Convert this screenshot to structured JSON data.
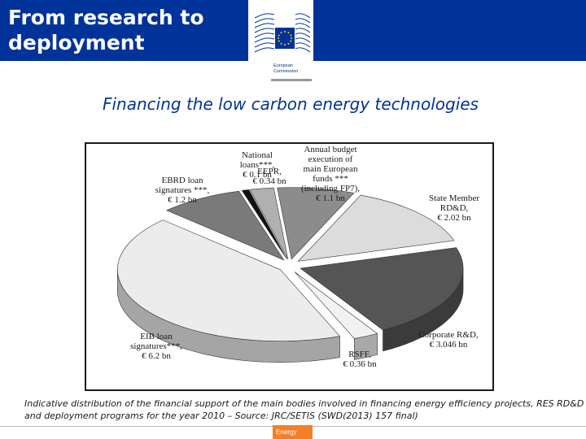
{
  "header": {
    "title": "From research to\ndeployment",
    "bg_color": "#003399"
  },
  "logo": {
    "label": "European\nCommission",
    "icon": "ec-building-logo-icon",
    "flag_color": "#003399",
    "star_color": "#ffcc00"
  },
  "subtitle": "Financing the low carbon energy technologies",
  "chart_data": {
    "type": "pie",
    "title": "",
    "unit": "€ bn",
    "slices": [
      {
        "label_lines": [
          "Annual budget",
          "execution of",
          "main European",
          "funds ***",
          "(including FP7),",
          "€ 1.1 bn"
        ],
        "value": 1.1,
        "color": "#8c8c8c"
      },
      {
        "label_lines": [
          "State Member",
          "RD&D,",
          "€ 2.02 bn"
        ],
        "value": 2.02,
        "color": "#dcdcdc"
      },
      {
        "label_lines": [
          "Corporate R&D,",
          "€ 3.046 bn"
        ],
        "value": 3.046,
        "color": "#555555"
      },
      {
        "label_lines": [
          "RSFF,",
          "€ 0.36 bn"
        ],
        "value": 0.36,
        "color": "#f2f2f2"
      },
      {
        "label_lines": [
          "EIB loan",
          "signatures***,",
          "€ 6.2 bn"
        ],
        "value": 6.2,
        "color": "#ececec"
      },
      {
        "label_lines": [
          "EBRD loan",
          "signatures ***,",
          "€ 1.2 bn"
        ],
        "value": 1.2,
        "color": "#7a7a7a"
      },
      {
        "label_lines": [
          "National",
          "loans***,",
          "€ 0.1 bn"
        ],
        "value": 0.1,
        "color": "#111111"
      },
      {
        "label_lines": [
          "EEPR,",
          "€ 0.34 bn"
        ],
        "value": 0.34,
        "color": "#b0b0b0"
      }
    ]
  },
  "caption": "Indicative distribution of the financial support of the main bodies involved in financing energy efficiency projects, RES RD&D and deployment programs  for the year 2010 – Source: JRC/SETIS (SWD(2013) 157 final)",
  "footer": {
    "badge": "Energy",
    "badge_color": "#f47f29"
  }
}
